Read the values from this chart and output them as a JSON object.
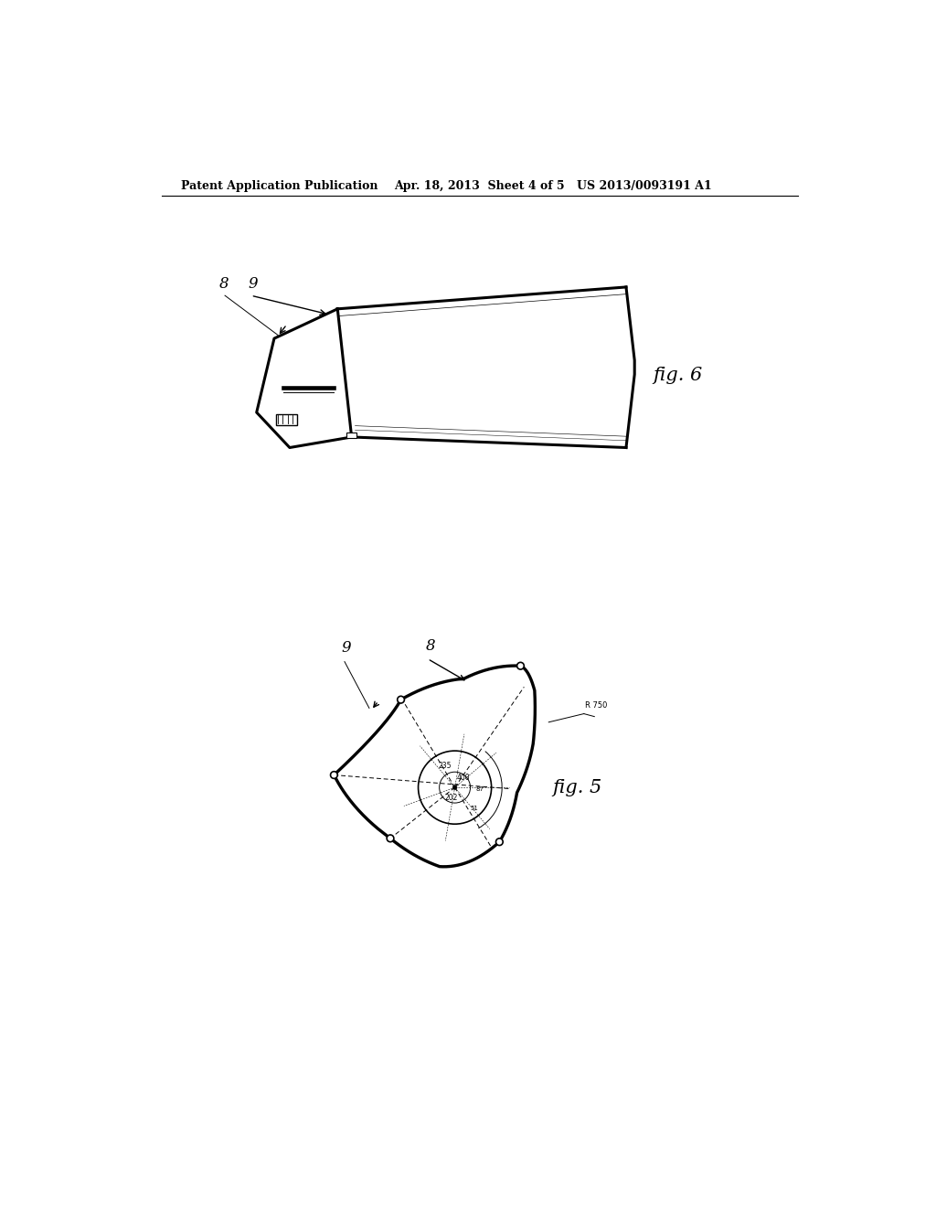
{
  "bg_color": "#ffffff",
  "title_left": "Patent Application Publication",
  "title_center": "Apr. 18, 2013  Sheet 4 of 5",
  "title_right": "US 2013/0093191 A1",
  "fig6_label": "fig. 6",
  "fig5_label": "fig. 5",
  "label_8": "8",
  "label_9": "9",
  "black": "#000000",
  "gray": "#aaaaaa",
  "lw_thick": 2.2,
  "lw_med": 1.2,
  "lw_thin": 0.7
}
